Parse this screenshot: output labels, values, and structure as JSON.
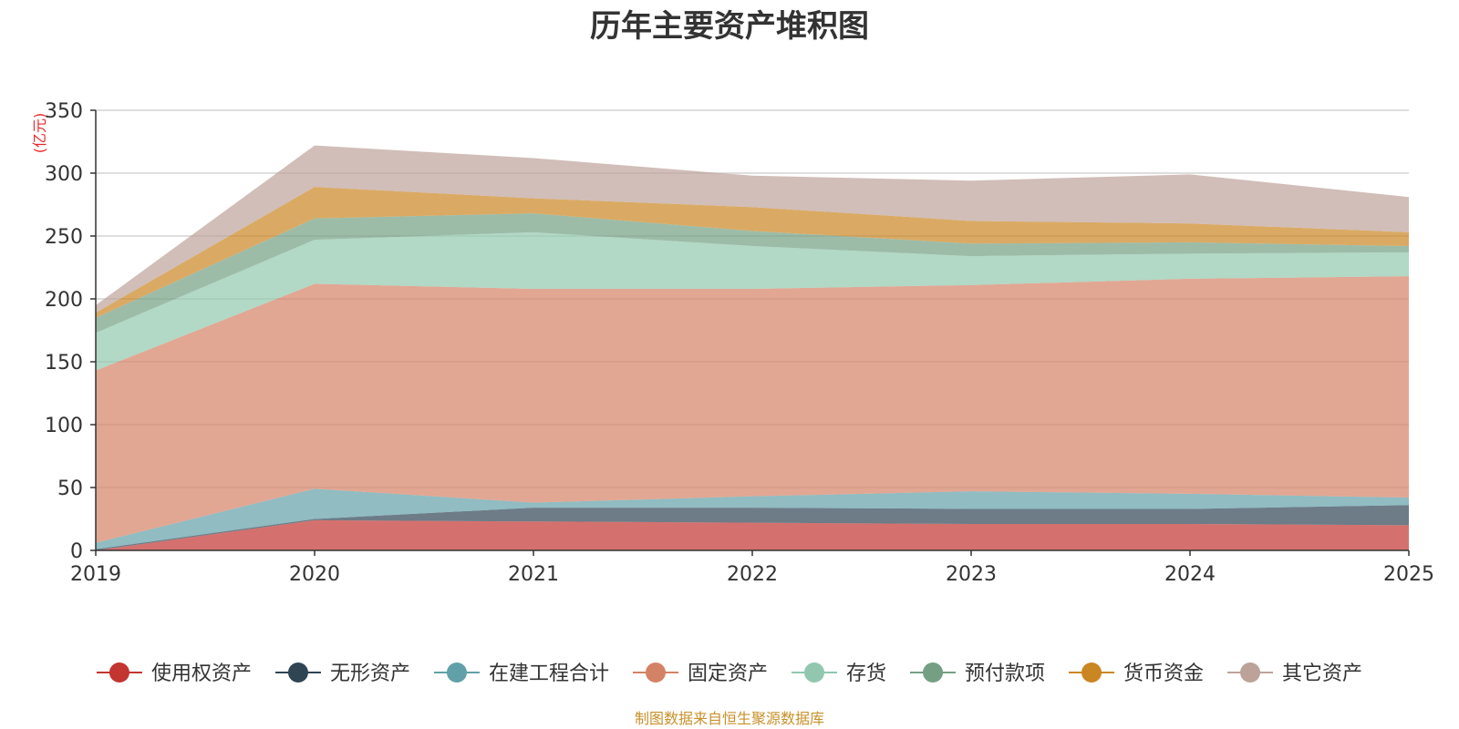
{
  "chart_data": {
    "type": "area",
    "stacked": true,
    "title": "历年主要资产堆积图",
    "unit_label": "(亿元)",
    "x": [
      "2019",
      "2020",
      "2021",
      "2022",
      "2023",
      "2024",
      "2025"
    ],
    "ylim": [
      0,
      350
    ],
    "y_ticks": [
      "0",
      "50",
      "100",
      "150",
      "200",
      "250",
      "300",
      "350"
    ],
    "grid": true,
    "legend_position": "bottom",
    "series": [
      {
        "name": "使用权资产",
        "color": "#c23531",
        "values": [
          0,
          24,
          23,
          22,
          21,
          21,
          20
        ]
      },
      {
        "name": "无形资产",
        "color": "#2f4554",
        "values": [
          1,
          1,
          11,
          12,
          12,
          12,
          16
        ]
      },
      {
        "name": "在建工程合计",
        "color": "#61a0a8",
        "values": [
          5,
          24,
          4,
          9,
          14,
          12,
          6
        ]
      },
      {
        "name": "固定资产",
        "color": "#d48265",
        "values": [
          137,
          163,
          170,
          165,
          164,
          171,
          176
        ]
      },
      {
        "name": "存货",
        "color": "#91c7ae",
        "values": [
          30,
          35,
          45,
          34,
          23,
          20,
          19
        ]
      },
      {
        "name": "预付款项",
        "color": "#749f83",
        "values": [
          12,
          17,
          15,
          12,
          10,
          9,
          5
        ]
      },
      {
        "name": "货币资金",
        "color": "#ca8622",
        "values": [
          4,
          25,
          12,
          19,
          18,
          15,
          11
        ]
      },
      {
        "name": "其它资产",
        "color": "#bda29a",
        "values": [
          6,
          33,
          32,
          25,
          32,
          39,
          28
        ]
      }
    ],
    "source_note": "制图数据来自恒生聚源数据库"
  }
}
